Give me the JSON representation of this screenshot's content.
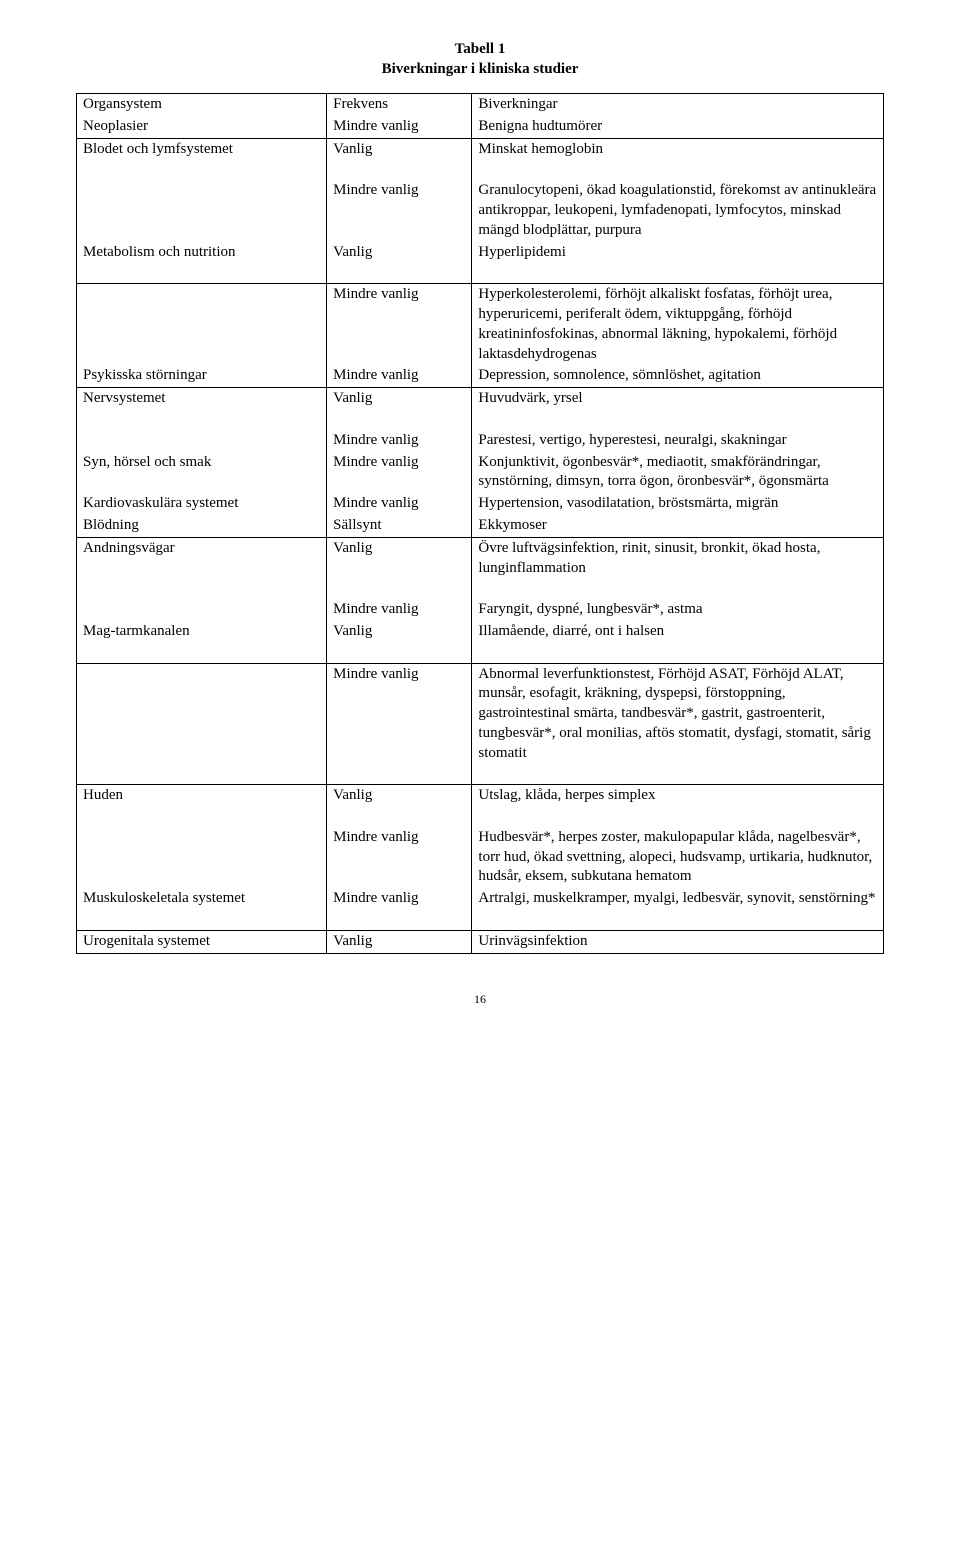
{
  "title_line1": "Tabell 1",
  "title_line2": "Biverkningar i kliniska studier",
  "page_number": "16",
  "header": {
    "c1": "Organsystem",
    "c2": "Frekvens",
    "c3": "Biverkningar"
  },
  "freq": {
    "vanlig": "Vanlig",
    "mindre": "Mindre vanlig",
    "sallsynt": "Sällsynt"
  },
  "rows": {
    "neoplasier": {
      "label": "Neoplasier",
      "effects": "Benigna hudtumörer"
    },
    "blodet": {
      "label": "Blodet och lymfsystemet",
      "e1": "Minskat hemoglobin",
      "e2": "Granulocytopeni, ökad koagulationstid, förekomst av antinukleära antikroppar, leukopeni, lymfadenopati, lymfocytos, minskad mängd blodplättar, purpura"
    },
    "metabolism": {
      "label": "Metabolism och nutrition",
      "e1": "Hyperlipidemi",
      "e2": "Hyperkolesterolemi, förhöjt alkaliskt fosfatas, förhöjt urea, hyperuricemi, periferalt ödem, viktuppgång, förhöjd kreatininfosfokinas, abnormal läkning, hypokalemi, förhöjd laktasdehydrogenas"
    },
    "psykisska": {
      "label": "Psykisska störningar",
      "effects": "Depression, somnolence, sömnlöshet, agitation"
    },
    "nerv": {
      "label": "Nervsystemet",
      "e1": "Huvudvärk, yrsel",
      "e2": "Parestesi, vertigo, hyperestesi, neuralgi, skakningar"
    },
    "syn": {
      "label": "Syn, hörsel och smak",
      "effects": "Konjunktivit, ögonbesvär*, mediaotit, smakförändringar, synstörning, dimsyn, torra ögon, öronbesvär*, ögonsmärta"
    },
    "kardio": {
      "label": "Kardiovaskulära systemet",
      "effects": "Hypertension, vasodilatation, bröstsmärta, migrän"
    },
    "blodning": {
      "label": "Blödning",
      "effects": "Ekkymoser"
    },
    "andning": {
      "label": "Andningsvägar",
      "e1": "Övre luftvägsinfektion, rinit, sinusit, bronkit, ökad hosta, lunginflammation",
      "e2": "Faryngit, dyspné, lungbesvär*, astma"
    },
    "magtarm": {
      "label": "Mag-tarmkanalen",
      "e1": "Illamående, diarré, ont i halsen",
      "e2": "Abnormal leverfunktionstest, Förhöjd ASAT, Förhöjd ALAT, munsår, esofagit, kräkning, dyspepsi, förstoppning, gastrointestinal smärta, tandbesvär*, gastrit, gastroenterit, tungbesvär*, oral monilias, aftös stomatit, dysfagi, stomatit, sårig stomatit"
    },
    "huden": {
      "label": "Huden",
      "e1": "Utslag, klåda, herpes simplex",
      "e2": "Hudbesvär*, herpes zoster, makulopapular klåda, nagelbesvär*, torr hud, ökad svettning, alopeci, hudsvamp, urtikaria, hudknutor, hudsår, eksem, subkutana hematom"
    },
    "muskulo": {
      "label": "Muskuloskeletala systemet",
      "effects": "Artralgi, muskelkramper, myalgi, ledbesvär, synovit, senstörning*"
    },
    "urogenitala": {
      "label": "Urogenitala systemet",
      "effects": "Urinvägsinfektion"
    }
  }
}
